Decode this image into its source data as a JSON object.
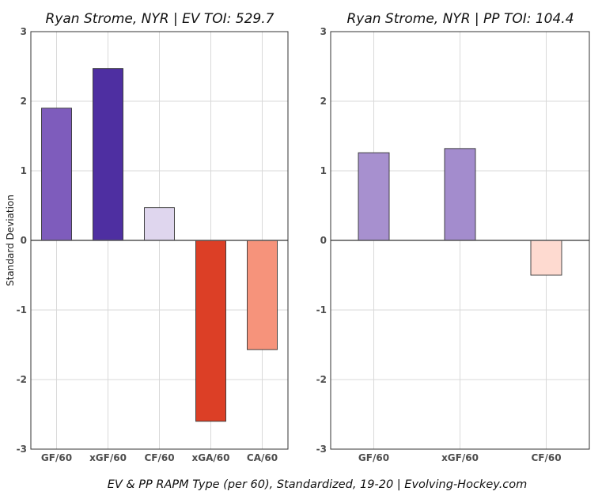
{
  "chart_data": [
    {
      "type": "bar",
      "title": "Ryan Strome, NYR  |  EV TOI: 529.7",
      "ylabel": "Standard Deviation",
      "ylim": [
        -3,
        3
      ],
      "yticks": [
        -3,
        -2,
        -1,
        0,
        1,
        2,
        3
      ],
      "grid": true,
      "categories": [
        "GF/60",
        "xGF/60",
        "CF/60",
        "xGA/60",
        "CA/60"
      ],
      "values": [
        1.9,
        2.47,
        0.47,
        -2.6,
        -1.57
      ],
      "colors": [
        "#7e5cbc",
        "#4e2fa1",
        "#dfd6ee",
        "#dc3f26",
        "#f6937b"
      ]
    },
    {
      "type": "bar",
      "title": "Ryan Strome, NYR  |  PP TOI: 104.4",
      "ylim": [
        -3,
        3
      ],
      "yticks": [
        -3,
        -2,
        -1,
        0,
        1,
        2,
        3
      ],
      "grid": true,
      "categories": [
        "GF/60",
        "xGF/60",
        "CF/60"
      ],
      "values": [
        1.26,
        1.32,
        -0.5
      ],
      "colors": [
        "#a790cf",
        "#a38ccd",
        "#fedad0"
      ]
    }
  ],
  "caption": "EV & PP RAPM Type (per 60), Standardized, 19-20    |    Evolving-Hockey.com"
}
